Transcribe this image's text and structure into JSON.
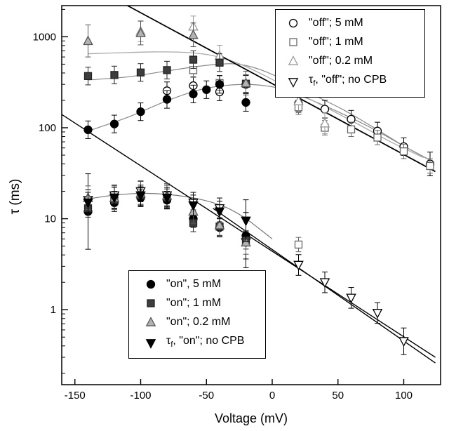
{
  "chart_data": {
    "type": "scatter",
    "title": "",
    "xlabel": "Voltage (mV)",
    "ylabel": "τ (ms)",
    "xlim": [
      -160,
      128
    ],
    "x_ticks": [
      -150,
      -100,
      -50,
      0,
      50,
      100
    ],
    "yscale": "log",
    "ylim": [
      0.15,
      2200
    ],
    "y_major_ticks": [
      1,
      10,
      100,
      1000
    ],
    "series": [
      {
        "id": "off-5mm",
        "name": "\"off\"; 5 mM",
        "marker": "circle-open",
        "stroke": "#000000",
        "fill": "#ffffff",
        "err": 1.25,
        "points": [
          [
            -80,
            255
          ],
          [
            -60,
            290
          ],
          [
            -40,
            248
          ],
          [
            -20,
            300
          ],
          [
            20,
            185
          ],
          [
            40,
            160
          ],
          [
            60,
            124
          ],
          [
            80,
            92
          ],
          [
            100,
            62
          ],
          [
            120,
            40,
            1.35
          ]
        ]
      },
      {
        "id": "off-1mm",
        "name": "\"off\"; 1 mM",
        "marker": "square-open",
        "stroke": "#666666",
        "fill": "#ffffff",
        "err": 1.2,
        "points": [
          [
            -60,
            430
          ],
          [
            -40,
            310
          ],
          [
            20,
            168
          ],
          [
            40,
            100
          ],
          [
            60,
            96
          ],
          [
            80,
            78
          ],
          [
            100,
            55
          ],
          [
            120,
            38
          ],
          [
            20,
            5.2
          ]
        ]
      },
      {
        "id": "off-0p2mm",
        "name": "\"off\"; 0.2 mM",
        "marker": "triangle-open",
        "stroke": "#999999",
        "fill": "#ffffff",
        "err": 1.3,
        "points": [
          [
            -100,
            1150
          ],
          [
            -60,
            1300
          ],
          [
            -40,
            620
          ],
          [
            20,
            196
          ],
          [
            40,
            112
          ]
        ]
      },
      {
        "id": "tauf-off-no-cpb",
        "name": "τf, \"off\"; no CPB",
        "marker": "triangle-down-open",
        "stroke": "#000000",
        "fill": "#ffffff",
        "err": 1.3,
        "points": [
          [
            -140,
            16
          ],
          [
            -120,
            18
          ],
          [
            -100,
            20
          ],
          [
            -80,
            18
          ],
          [
            -60,
            15
          ],
          [
            -40,
            13
          ],
          [
            -20,
            5.5,
            1.9
          ],
          [
            20,
            3.1
          ],
          [
            40,
            2.0
          ],
          [
            60,
            1.35
          ],
          [
            80,
            0.92
          ],
          [
            100,
            0.45,
            1.4
          ]
        ]
      },
      {
        "id": "on-5mm",
        "name": "\"on\", 5 mM",
        "marker": "circle-filled",
        "stroke": "#000000",
        "fill": "#000000",
        "err": 1.25,
        "points": [
          [
            -140,
            95
          ],
          [
            -120,
            110
          ],
          [
            -100,
            150
          ],
          [
            -80,
            205
          ],
          [
            -60,
            235
          ],
          [
            -50,
            262
          ],
          [
            -40,
            300
          ],
          [
            -20,
            190
          ],
          [
            -140,
            12,
            2.6
          ],
          [
            -120,
            15
          ],
          [
            -100,
            17
          ],
          [
            -80,
            16
          ],
          [
            -60,
            10
          ],
          [
            -40,
            8
          ],
          [
            -20,
            6.5,
            1.8
          ]
        ]
      },
      {
        "id": "on-1mm",
        "name": "\"on\"; 1 mM",
        "marker": "square-filled",
        "stroke": "#222222",
        "fill": "#3d3d3d",
        "err": 1.25,
        "points": [
          [
            -140,
            370
          ],
          [
            -120,
            380
          ],
          [
            -100,
            405
          ],
          [
            -80,
            430
          ],
          [
            -60,
            560
          ],
          [
            -40,
            520
          ],
          [
            -20,
            305
          ],
          [
            -140,
            13
          ],
          [
            -120,
            16
          ],
          [
            -100,
            18
          ],
          [
            -80,
            17
          ],
          [
            -60,
            9
          ],
          [
            -40,
            8.2
          ],
          [
            -20,
            5.8
          ]
        ]
      },
      {
        "id": "on-0p2mm",
        "name": "\"on\"; 0.2 mM",
        "marker": "triangle-filled",
        "stroke": "#555555",
        "fill": "#b3b3b3",
        "err": 1.35,
        "points": [
          [
            -140,
            900,
            1.5
          ],
          [
            -100,
            1100
          ],
          [
            -60,
            1050
          ],
          [
            -20,
            310
          ],
          [
            -140,
            17
          ],
          [
            -120,
            17
          ],
          [
            -100,
            19
          ],
          [
            -80,
            18
          ],
          [
            -60,
            12
          ],
          [
            -40,
            8.5
          ],
          [
            -20,
            5.5
          ]
        ]
      },
      {
        "id": "tauf-on-no-cpb",
        "name": "τf, \"on\"; no CPB",
        "marker": "triangle-down-filled",
        "stroke": "#000000",
        "fill": "#000000",
        "err": 1.3,
        "points": [
          [
            -140,
            15
          ],
          [
            -120,
            17
          ],
          [
            -100,
            18
          ],
          [
            -80,
            17
          ],
          [
            -60,
            14
          ],
          [
            -40,
            12
          ],
          [
            -20,
            9.5,
            1.7
          ]
        ]
      }
    ],
    "lines": [
      {
        "name": "off-exponential-fit-line",
        "stroke": "#000000",
        "width": 1.8,
        "points": [
          [
            -110,
            2200
          ],
          [
            124,
            33
          ]
        ]
      },
      {
        "name": "on-exponential-fit-line-1",
        "stroke": "#000000",
        "width": 1.4,
        "points": [
          [
            -160,
            140
          ],
          [
            124,
            0.3
          ]
        ]
      },
      {
        "name": "on-exponential-fit-line-2",
        "stroke": "#000000",
        "width": 1.4,
        "points": [
          [
            -45,
            13
          ],
          [
            124,
            0.26
          ]
        ]
      }
    ],
    "curves": [
      {
        "name": "fit-curve-5mm",
        "stroke": "#888888",
        "width": 1.2,
        "points": [
          [
            -140,
            92
          ],
          [
            -110,
            130
          ],
          [
            -80,
            198
          ],
          [
            -55,
            262
          ],
          [
            -35,
            292
          ],
          [
            -15,
            298
          ],
          [
            5,
            272
          ],
          [
            25,
            215
          ],
          [
            50,
            150
          ],
          [
            75,
            100
          ],
          [
            100,
            63
          ],
          [
            120,
            44
          ]
        ]
      },
      {
        "name": "fit-curve-1mm",
        "stroke": "#888888",
        "width": 1.2,
        "points": [
          [
            -140,
            335
          ],
          [
            -110,
            362
          ],
          [
            -85,
            410
          ],
          [
            -60,
            465
          ],
          [
            -40,
            500
          ],
          [
            -25,
            498
          ],
          [
            -8,
            430
          ],
          [
            10,
            330
          ],
          [
            30,
            235
          ],
          [
            55,
            155
          ],
          [
            80,
            95
          ],
          [
            100,
            63
          ],
          [
            120,
            44
          ]
        ]
      },
      {
        "name": "fit-curve-0p2mm",
        "stroke": "#aaaaaa",
        "width": 1.3,
        "points": [
          [
            -140,
            650
          ],
          [
            -115,
            668
          ],
          [
            -90,
            682
          ],
          [
            -65,
            672
          ],
          [
            -45,
            620
          ],
          [
            -25,
            505
          ],
          [
            -5,
            370
          ],
          [
            15,
            260
          ],
          [
            40,
            170
          ],
          [
            65,
            110
          ],
          [
            90,
            70
          ],
          [
            115,
            47
          ]
        ]
      },
      {
        "name": "fit-curve-on-lower",
        "stroke": "#777777",
        "width": 1.2,
        "points": [
          [
            -140,
            16.5
          ],
          [
            -118,
            18.3
          ],
          [
            -95,
            19
          ],
          [
            -72,
            18
          ],
          [
            -52,
            16
          ],
          [
            -36,
            13.5
          ],
          [
            -22,
            10.5
          ],
          [
            -10,
            7.8
          ],
          [
            0,
            6
          ]
        ]
      }
    ]
  },
  "legend_off": {
    "items": [
      {
        "marker": "circle-open",
        "stroke": "#000000",
        "fill": "#ffffff",
        "label": "\"off\"; 5 mM"
      },
      {
        "marker": "square-open",
        "stroke": "#666666",
        "fill": "#ffffff",
        "label": "\"off\"; 1 mM"
      },
      {
        "marker": "triangle-open",
        "stroke": "#999999",
        "fill": "#ffffff",
        "label": "\"off\"; 0.2 mM"
      },
      {
        "marker": "triangle-down-open",
        "stroke": "#000000",
        "fill": "#ffffff",
        "tau_prefix": "τ",
        "tau_sub": "f",
        "label": ", \"off\"; no CPB"
      }
    ]
  },
  "legend_on": {
    "items": [
      {
        "marker": "circle-filled",
        "stroke": "#000000",
        "fill": "#000000",
        "label": "\"on\", 5 mM"
      },
      {
        "marker": "square-filled",
        "stroke": "#222222",
        "fill": "#3d3d3d",
        "label": "\"on\"; 1 mM"
      },
      {
        "marker": "triangle-filled",
        "stroke": "#555555",
        "fill": "#b3b3b3",
        "label": "\"on\"; 0.2 mM"
      },
      {
        "marker": "triangle-down-filled",
        "stroke": "#000000",
        "fill": "#000000",
        "tau_prefix": "τ",
        "tau_sub": "f",
        "label": ", \"on\"; no CPB"
      }
    ]
  }
}
